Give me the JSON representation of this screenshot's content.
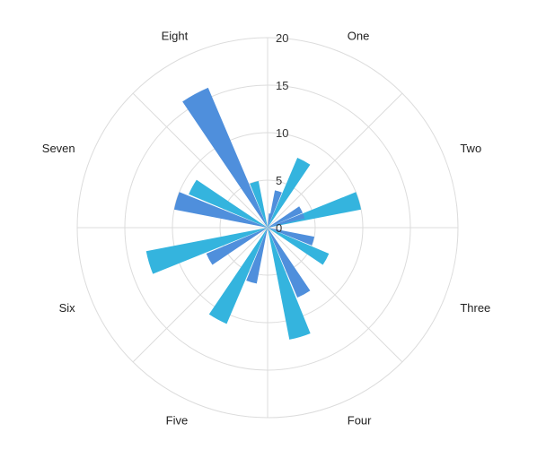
{
  "chart_data": {
    "type": "polar-bar",
    "categories": [
      "One",
      "Two",
      "Three",
      "Four",
      "Five",
      "Six",
      "Seven",
      "Eight"
    ],
    "radial_ticks": [
      "0",
      "5",
      "10",
      "15",
      "20"
    ],
    "rlim": [
      0,
      20
    ],
    "grid": true,
    "series": [
      {
        "values": [
          4,
          4,
          5,
          8,
          6,
          7,
          10,
          16
        ],
        "color": "#4f8fdc",
        "angle_offset_deg": -6
      },
      {
        "values": [
          8,
          10,
          7,
          12,
          11,
          13,
          9,
          5
        ],
        "color": "#34b4de",
        "angle_offset_deg": 6
      }
    ],
    "inner_wedges": [
      {
        "category": "One",
        "value": 1.5,
        "color": "#4f8fdc",
        "angle_deg": 9
      },
      {
        "category": "Two",
        "value": 4,
        "color": "#4f8fdc",
        "angle_deg": 72
      }
    ]
  }
}
